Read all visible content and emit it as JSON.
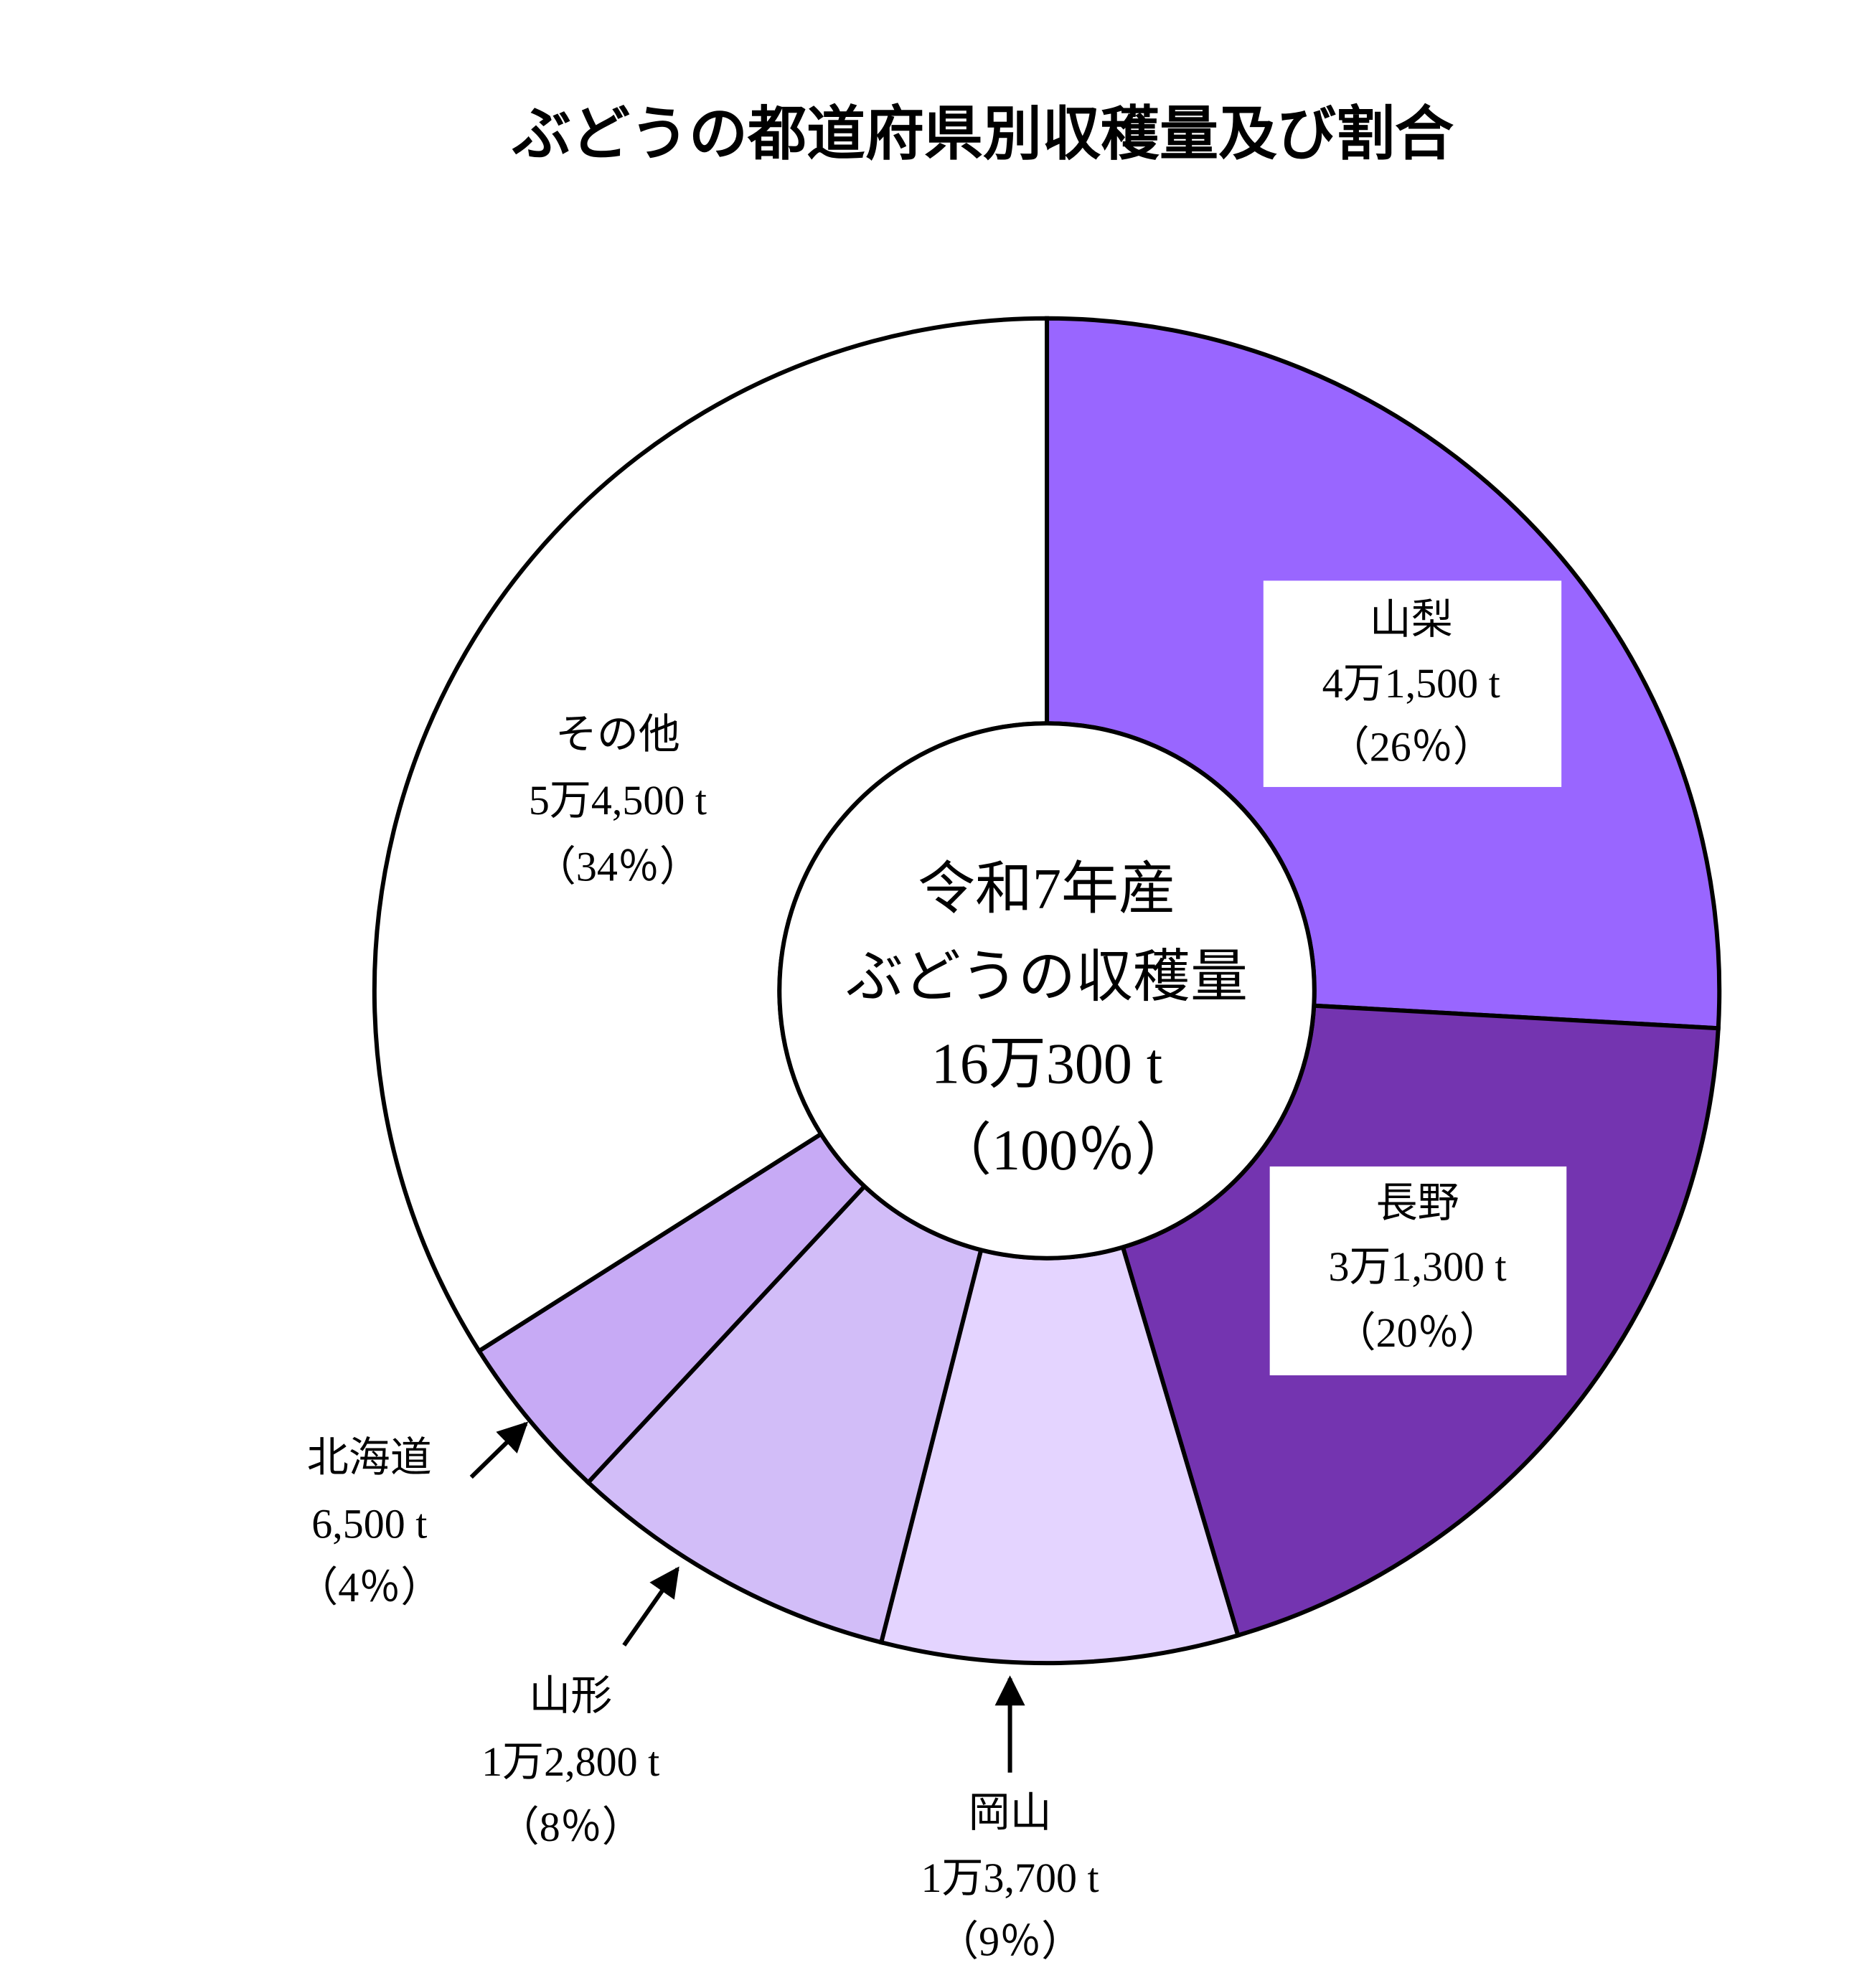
{
  "chart_data": {
    "type": "donut",
    "title": "ぶどうの都道府県別収穫量及び割合",
    "categories": [
      "山梨",
      "長野",
      "岡山",
      "山形",
      "北海道",
      "その他"
    ],
    "values": [
      41500,
      31300,
      13700,
      12800,
      6500,
      54500
    ],
    "value_labels": [
      "4万1,500 t",
      "3万1,300 t",
      "1万3,700 t",
      "1万2,800 t",
      "6,500 t",
      "5万4,500 t"
    ],
    "percent_labels": [
      "（26％）",
      "（20％）",
      "（9％）",
      "（8％）",
      "（4％）",
      "（34％）"
    ],
    "colors": [
      "#9966ff",
      "#7434b0",
      "#e4d4ff",
      "#d2bdf8",
      "#c7aaf5",
      "#ffffff"
    ],
    "center_text": [
      "令和7年産",
      "ぶどうの収穫量",
      "16万300 t",
      "（100％）"
    ]
  }
}
